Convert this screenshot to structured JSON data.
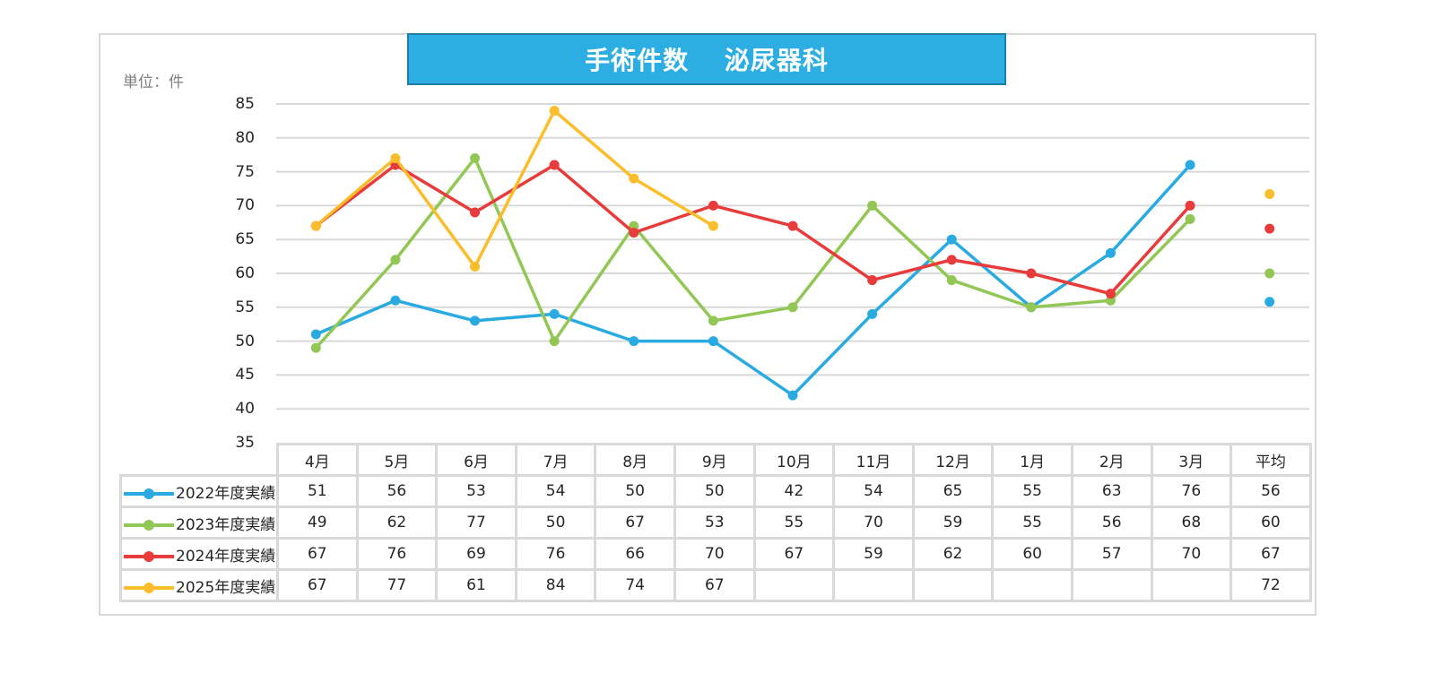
{
  "title": "手術件数　 泌尿器科",
  "unit_label": "単位：件",
  "colors": {
    "title_bg": "#2daee3",
    "title_border": "#1f7fab",
    "grid": "#d9d9d9",
    "series": [
      "#29abe2",
      "#92c755",
      "#e83b3b",
      "#fbbd2a"
    ]
  },
  "y_axis": {
    "ticks": [
      "85",
      "80",
      "75",
      "70",
      "65",
      "60",
      "55",
      "50",
      "45",
      "40",
      "35"
    ]
  },
  "table": {
    "columns": [
      "4月",
      "5月",
      "6月",
      "7月",
      "8月",
      "9月",
      "10月",
      "11月",
      "12月",
      "1月",
      "2月",
      "3月",
      "平均"
    ],
    "rows": [
      {
        "label": "2022年度実績",
        "cells": [
          "51",
          "56",
          "53",
          "54",
          "50",
          "50",
          "42",
          "54",
          "65",
          "55",
          "63",
          "76",
          "56"
        ]
      },
      {
        "label": "2023年度実績",
        "cells": [
          "49",
          "62",
          "77",
          "50",
          "67",
          "53",
          "55",
          "70",
          "59",
          "55",
          "56",
          "68",
          "60"
        ]
      },
      {
        "label": "2024年度実績",
        "cells": [
          "67",
          "76",
          "69",
          "76",
          "66",
          "70",
          "67",
          "59",
          "62",
          "60",
          "57",
          "70",
          "67"
        ]
      },
      {
        "label": "2025年度実績",
        "cells": [
          "67",
          "77",
          "61",
          "84",
          "74",
          "67",
          "",
          "",
          "",
          "",
          "",
          "",
          "72"
        ]
      }
    ]
  },
  "chart_data": {
    "type": "line",
    "title": "手術件数　泌尿器科",
    "xlabel": "",
    "ylabel": "単位：件",
    "ylim": [
      35,
      85
    ],
    "yticks": [
      35,
      40,
      45,
      50,
      55,
      60,
      65,
      70,
      75,
      80,
      85
    ],
    "grid": true,
    "legend_position": "data-table (bottom-left)",
    "categories": [
      "4月",
      "5月",
      "6月",
      "7月",
      "8月",
      "9月",
      "10月",
      "11月",
      "12月",
      "1月",
      "2月",
      "3月",
      "平均"
    ],
    "series": [
      {
        "name": "2022年度実績",
        "color": "#29abe2",
        "values": [
          51,
          56,
          53,
          54,
          50,
          50,
          42,
          54,
          65,
          55,
          63,
          76
        ],
        "average": 56,
        "average_plotted": 55.8
      },
      {
        "name": "2023年度実績",
        "color": "#92c755",
        "values": [
          49,
          62,
          77,
          50,
          67,
          53,
          55,
          70,
          59,
          55,
          56,
          68
        ],
        "average": 60,
        "average_plotted": 60.0
      },
      {
        "name": "2024年度実績",
        "color": "#e83b3b",
        "values": [
          67,
          76,
          69,
          76,
          66,
          70,
          67,
          59,
          62,
          60,
          57,
          70
        ],
        "average": 67,
        "average_plotted": 66.6
      },
      {
        "name": "2025年度実績",
        "color": "#fbbd2a",
        "values": [
          67,
          77,
          61,
          84,
          74,
          67,
          null,
          null,
          null,
          null,
          null,
          null
        ],
        "average": 72,
        "average_plotted": 71.7
      }
    ]
  }
}
